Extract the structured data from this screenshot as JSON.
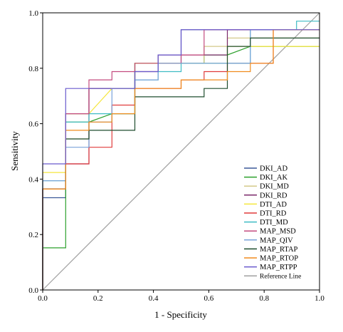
{
  "chart_data": {
    "type": "line",
    "title": "",
    "xlabel": "1 - Specificity",
    "ylabel": "Sensitivity",
    "xlim": [
      0,
      1
    ],
    "ylim": [
      0,
      1
    ],
    "x_ticks": [
      "0.0",
      "0.2",
      "0.4",
      "0.6",
      "0.8",
      "1.0"
    ],
    "y_ticks": [
      "0.0",
      "0.2",
      "0.4",
      "0.6",
      "0.8",
      "1.0"
    ],
    "grid": false,
    "legend_position": "bottom-right",
    "series": [
      {
        "name": "DKI_AD",
        "color": "#3b5998",
        "points": [
          [
            0,
            0
          ],
          [
            0,
            0.333
          ],
          [
            0.083,
            0.333
          ],
          [
            0.083,
            0.636
          ],
          [
            0.167,
            0.636
          ],
          [
            0.167,
            0.727
          ],
          [
            0.333,
            0.727
          ],
          [
            0.333,
            0.818
          ],
          [
            0.5,
            0.818
          ],
          [
            0.5,
            0.939
          ],
          [
            1,
            0.939
          ]
        ]
      },
      {
        "name": "DKI_AK",
        "color": "#2ca02c",
        "points": [
          [
            0,
            0
          ],
          [
            0,
            0.152
          ],
          [
            0.083,
            0.152
          ],
          [
            0.083,
            0.606
          ],
          [
            0.167,
            0.606
          ],
          [
            0.25,
            0.636
          ],
          [
            0.333,
            0.636
          ],
          [
            0.333,
            0.818
          ],
          [
            0.583,
            0.818
          ],
          [
            0.583,
            0.848
          ],
          [
            0.667,
            0.848
          ],
          [
            0.75,
            0.879
          ],
          [
            1,
            0.879
          ]
        ]
      },
      {
        "name": "DKI_MD",
        "color": "#d4c98a",
        "points": [
          [
            0,
            0
          ],
          [
            0,
            0.364
          ],
          [
            0.083,
            0.364
          ],
          [
            0.083,
            0.545
          ],
          [
            0.167,
            0.545
          ],
          [
            0.167,
            0.727
          ],
          [
            0.333,
            0.727
          ],
          [
            0.333,
            0.818
          ],
          [
            0.583,
            0.818
          ],
          [
            0.583,
            0.879
          ],
          [
            0.667,
            0.879
          ],
          [
            0.667,
            0.909
          ],
          [
            1,
            0.909
          ]
        ]
      },
      {
        "name": "DKI_RD",
        "color": "#7b2a6b",
        "points": [
          [
            0,
            0
          ],
          [
            0,
            0.364
          ],
          [
            0.083,
            0.364
          ],
          [
            0.083,
            0.455
          ],
          [
            0.167,
            0.455
          ],
          [
            0.167,
            0.727
          ],
          [
            0.333,
            0.727
          ],
          [
            0.333,
            0.788
          ],
          [
            0.417,
            0.788
          ],
          [
            0.417,
            0.848
          ],
          [
            0.667,
            0.848
          ],
          [
            0.667,
            0.939
          ],
          [
            1,
            0.939
          ]
        ]
      },
      {
        "name": "DTI_AD",
        "color": "#f5e63c",
        "points": [
          [
            0,
            0
          ],
          [
            0,
            0.424
          ],
          [
            0.083,
            0.424
          ],
          [
            0.083,
            0.636
          ],
          [
            0.167,
            0.636
          ],
          [
            0.25,
            0.727
          ],
          [
            0.333,
            0.727
          ],
          [
            0.333,
            0.818
          ],
          [
            0.667,
            0.818
          ],
          [
            0.667,
            0.879
          ],
          [
            1,
            0.879
          ]
        ]
      },
      {
        "name": "DTI_RD",
        "color": "#e03c3c",
        "points": [
          [
            0,
            0
          ],
          [
            0,
            0.364
          ],
          [
            0.083,
            0.364
          ],
          [
            0.083,
            0.455
          ],
          [
            0.167,
            0.455
          ],
          [
            0.167,
            0.515
          ],
          [
            0.25,
            0.515
          ],
          [
            0.25,
            0.667
          ],
          [
            0.333,
            0.667
          ],
          [
            0.333,
            0.727
          ],
          [
            0.5,
            0.727
          ],
          [
            0.5,
            0.758
          ],
          [
            0.583,
            0.758
          ],
          [
            0.583,
            0.788
          ],
          [
            0.667,
            0.788
          ],
          [
            0.667,
            0.818
          ],
          [
            0.833,
            0.818
          ],
          [
            0.833,
            0.939
          ],
          [
            1,
            0.939
          ]
        ]
      },
      {
        "name": "DTI_MD",
        "color": "#3fbcc4",
        "points": [
          [
            0,
            0
          ],
          [
            0,
            0.394
          ],
          [
            0.083,
            0.394
          ],
          [
            0.083,
            0.606
          ],
          [
            0.167,
            0.606
          ],
          [
            0.167,
            0.636
          ],
          [
            0.25,
            0.636
          ],
          [
            0.333,
            0.636
          ],
          [
            0.333,
            0.758
          ],
          [
            0.417,
            0.758
          ],
          [
            0.417,
            0.788
          ],
          [
            0.5,
            0.788
          ],
          [
            0.5,
            0.818
          ],
          [
            0.75,
            0.818
          ],
          [
            0.75,
            0.939
          ],
          [
            0.917,
            0.939
          ],
          [
            0.917,
            0.97
          ],
          [
            1,
            0.97
          ]
        ]
      },
      {
        "name": "MAP_MSD",
        "color": "#c44b7f",
        "points": [
          [
            0,
            0
          ],
          [
            0,
            0.364
          ],
          [
            0.083,
            0.364
          ],
          [
            0.083,
            0.636
          ],
          [
            0.167,
            0.636
          ],
          [
            0.167,
            0.758
          ],
          [
            0.25,
            0.758
          ],
          [
            0.25,
            0.788
          ],
          [
            0.333,
            0.788
          ],
          [
            0.333,
            0.818
          ],
          [
            0.5,
            0.818
          ],
          [
            0.5,
            0.848
          ],
          [
            0.583,
            0.848
          ],
          [
            0.583,
            0.939
          ],
          [
            1,
            0.939
          ]
        ]
      },
      {
        "name": "MAP_QIV",
        "color": "#7aa3d9",
        "points": [
          [
            0,
            0
          ],
          [
            0,
            0.394
          ],
          [
            0.083,
            0.394
          ],
          [
            0.083,
            0.515
          ],
          [
            0.167,
            0.515
          ],
          [
            0.167,
            0.606
          ],
          [
            0.25,
            0.606
          ],
          [
            0.25,
            0.727
          ],
          [
            0.333,
            0.727
          ],
          [
            0.333,
            0.758
          ],
          [
            0.417,
            0.758
          ],
          [
            0.417,
            0.818
          ],
          [
            0.75,
            0.818
          ],
          [
            0.75,
            0.939
          ],
          [
            1,
            0.939
          ]
        ]
      },
      {
        "name": "MAP_RTAP",
        "color": "#1f4d2e",
        "points": [
          [
            0,
            0
          ],
          [
            0,
            0.364
          ],
          [
            0.083,
            0.364
          ],
          [
            0.083,
            0.545
          ],
          [
            0.167,
            0.545
          ],
          [
            0.167,
            0.576
          ],
          [
            0.333,
            0.576
          ],
          [
            0.333,
            0.697
          ],
          [
            0.583,
            0.697
          ],
          [
            0.583,
            0.727
          ],
          [
            0.667,
            0.727
          ],
          [
            0.667,
            0.879
          ],
          [
            0.75,
            0.879
          ],
          [
            0.75,
            0.909
          ],
          [
            1,
            0.909
          ]
        ]
      },
      {
        "name": "MAP_RTOP",
        "color": "#f08c1e",
        "points": [
          [
            0,
            0
          ],
          [
            0,
            0.364
          ],
          [
            0.083,
            0.364
          ],
          [
            0.083,
            0.576
          ],
          [
            0.167,
            0.576
          ],
          [
            0.167,
            0.606
          ],
          [
            0.25,
            0.606
          ],
          [
            0.25,
            0.636
          ],
          [
            0.333,
            0.636
          ],
          [
            0.333,
            0.727
          ],
          [
            0.5,
            0.727
          ],
          [
            0.5,
            0.758
          ],
          [
            0.667,
            0.758
          ],
          [
            0.667,
            0.788
          ],
          [
            0.75,
            0.788
          ],
          [
            0.75,
            0.818
          ],
          [
            0.833,
            0.818
          ],
          [
            0.833,
            0.939
          ],
          [
            1,
            0.939
          ]
        ]
      },
      {
        "name": "MAP_RTPP",
        "color": "#6a5acd",
        "points": [
          [
            0,
            0
          ],
          [
            0,
            0.455
          ],
          [
            0.083,
            0.455
          ],
          [
            0.083,
            0.727
          ],
          [
            0.25,
            0.727
          ],
          [
            0.333,
            0.727
          ],
          [
            0.333,
            0.788
          ],
          [
            0.417,
            0.788
          ],
          [
            0.417,
            0.848
          ],
          [
            0.5,
            0.848
          ],
          [
            0.5,
            0.939
          ],
          [
            1,
            0.939
          ]
        ]
      },
      {
        "name": "Reference Line",
        "color": "#a0a0a0",
        "points": [
          [
            0,
            0
          ],
          [
            1,
            1
          ]
        ]
      }
    ]
  }
}
